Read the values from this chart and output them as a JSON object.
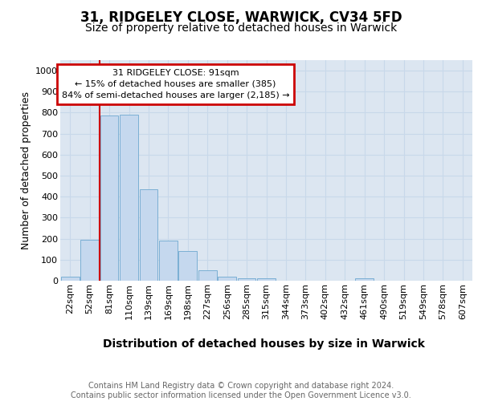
{
  "title": "31, RIDGELEY CLOSE, WARWICK, CV34 5FD",
  "subtitle": "Size of property relative to detached houses in Warwick",
  "xlabel": "Distribution of detached houses by size in Warwick",
  "ylabel": "Number of detached properties",
  "categories": [
    "22sqm",
    "52sqm",
    "81sqm",
    "110sqm",
    "139sqm",
    "169sqm",
    "198sqm",
    "227sqm",
    "256sqm",
    "285sqm",
    "315sqm",
    "344sqm",
    "373sqm",
    "402sqm",
    "432sqm",
    "461sqm",
    "490sqm",
    "519sqm",
    "549sqm",
    "578sqm",
    "607sqm"
  ],
  "values": [
    20,
    195,
    785,
    790,
    435,
    190,
    140,
    50,
    20,
    12,
    10,
    0,
    0,
    0,
    0,
    10,
    0,
    0,
    0,
    0,
    0
  ],
  "bar_color": "#c5d8ee",
  "bar_edge_color": "#7bafd4",
  "vline_x": 1.5,
  "annotation_text": "31 RIDGELEY CLOSE: 91sqm\n← 15% of detached houses are smaller (385)\n84% of semi-detached houses are larger (2,185) →",
  "annotation_box_facecolor": "#ffffff",
  "annotation_box_edgecolor": "#cc0000",
  "vline_color": "#cc0000",
  "ylim_max": 1050,
  "yticks": [
    0,
    100,
    200,
    300,
    400,
    500,
    600,
    700,
    800,
    900,
    1000
  ],
  "grid_color": "#c8d8ea",
  "plot_bg_color": "#dce6f1",
  "footer_text": "Contains HM Land Registry data © Crown copyright and database right 2024.\nContains public sector information licensed under the Open Government Licence v3.0.",
  "title_fontsize": 12,
  "subtitle_fontsize": 10,
  "xlabel_fontsize": 10,
  "ylabel_fontsize": 9,
  "tick_fontsize": 8,
  "annotation_fontsize": 8,
  "footer_fontsize": 7
}
